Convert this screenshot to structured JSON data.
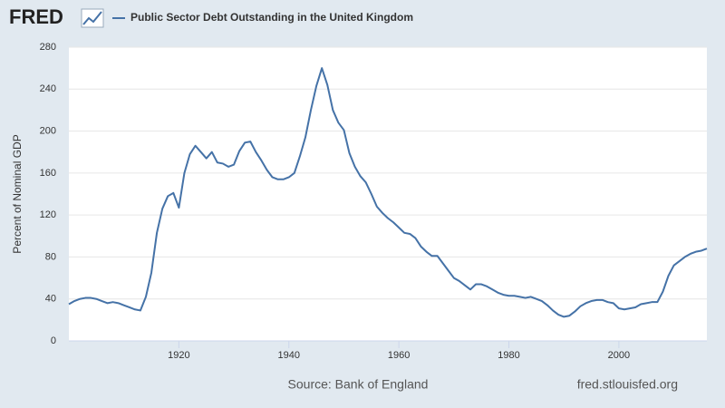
{
  "logo": "FRED",
  "chart_data": {
    "type": "line",
    "y_label": "Percent of Nominal GDP",
    "source": "Source: Bank of England",
    "site": "fred.stlouisfed.org",
    "x": [
      1900,
      1901,
      1902,
      1903,
      1904,
      1905,
      1906,
      1907,
      1908,
      1909,
      1910,
      1911,
      1912,
      1913,
      1914,
      1915,
      1916,
      1917,
      1918,
      1919,
      1920,
      1921,
      1922,
      1923,
      1924,
      1925,
      1926,
      1927,
      1928,
      1929,
      1930,
      1931,
      1932,
      1933,
      1934,
      1935,
      1936,
      1937,
      1938,
      1939,
      1940,
      1941,
      1942,
      1943,
      1944,
      1945,
      1946,
      1947,
      1948,
      1949,
      1950,
      1951,
      1952,
      1953,
      1954,
      1955,
      1956,
      1957,
      1958,
      1959,
      1960,
      1961,
      1962,
      1963,
      1964,
      1965,
      1966,
      1967,
      1968,
      1969,
      1970,
      1971,
      1972,
      1973,
      1974,
      1975,
      1976,
      1977,
      1978,
      1979,
      1980,
      1981,
      1982,
      1983,
      1984,
      1985,
      1986,
      1987,
      1988,
      1989,
      1990,
      1991,
      1992,
      1993,
      1994,
      1995,
      1996,
      1997,
      1998,
      1999,
      2000,
      2001,
      2002,
      2003,
      2004,
      2005,
      2006,
      2007,
      2008,
      2009,
      2010,
      2011,
      2012,
      2013,
      2014,
      2015,
      2016
    ],
    "series": [
      {
        "name": "Public Sector Debt Outstanding in the United Kingdom",
        "color": "#4572a7",
        "values": [
          35,
          38,
          40,
          41,
          41,
          40,
          38,
          36,
          37,
          36,
          34,
          32,
          30,
          29,
          42,
          65,
          103,
          126,
          138,
          141,
          127,
          160,
          178,
          186,
          180,
          174,
          180,
          170,
          169,
          166,
          168,
          181,
          189,
          190,
          180,
          172,
          163,
          156,
          154,
          154,
          156,
          160,
          176,
          194,
          220,
          243,
          260,
          244,
          220,
          208,
          201,
          179,
          166,
          157,
          151,
          140,
          128,
          122,
          117,
          113,
          108,
          103,
          102,
          98,
          90,
          85,
          81,
          81,
          74,
          67,
          60,
          57,
          53,
          49,
          54,
          54,
          52,
          49,
          46,
          44,
          43,
          43,
          42,
          41,
          42,
          40,
          38,
          34,
          29,
          25,
          23,
          24,
          28,
          33,
          36,
          38,
          39,
          39,
          37,
          36,
          31,
          30,
          31,
          32,
          35,
          36,
          37,
          37,
          47,
          62,
          72,
          76,
          80,
          83,
          85,
          86,
          88
        ]
      }
    ],
    "xlim": [
      1900,
      2016
    ],
    "xticks": [
      1920,
      1940,
      1960,
      1980,
      2000
    ],
    "ylim": [
      0,
      280
    ],
    "yticks": [
      0,
      40,
      80,
      120,
      160,
      200,
      240,
      280
    ],
    "grid": true
  }
}
